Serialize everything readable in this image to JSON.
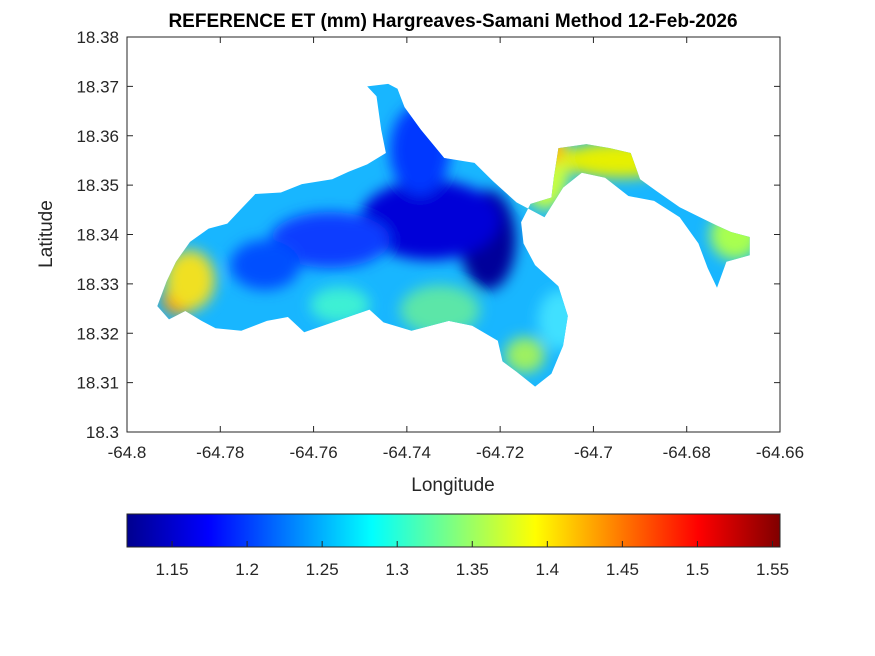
{
  "chart_data": {
    "type": "heatmap",
    "title": "REFERENCE ET (mm) Hargreaves-Samani Method  12-Feb-2026",
    "xlabel": "Longitude",
    "ylabel": "Latitude",
    "xlim": [
      -64.8,
      -64.66
    ],
    "ylim": [
      18.3,
      18.38
    ],
    "x_ticks": [
      "-64.8",
      "-64.78",
      "-64.76",
      "-64.74",
      "-64.72",
      "-64.7",
      "-64.68",
      "-64.66"
    ],
    "y_ticks": [
      "18.3",
      "18.31",
      "18.32",
      "18.33",
      "18.34",
      "18.35",
      "18.36",
      "18.37",
      "18.38"
    ],
    "colorbar": {
      "colormap": "jet",
      "range": [
        1.12,
        1.555
      ],
      "ticks": [
        "1.15",
        "1.2",
        "1.25",
        "1.3",
        "1.35",
        "1.4",
        "1.45",
        "1.5",
        "1.55"
      ]
    },
    "grid": false,
    "island_outline": [
      [
        -64.791,
        18.3228
      ],
      [
        -64.7875,
        18.3245
      ],
      [
        -64.784,
        18.3225
      ],
      [
        -64.781,
        18.321
      ],
      [
        -64.7755,
        18.3205
      ],
      [
        -64.77,
        18.3225
      ],
      [
        -64.7655,
        18.3233
      ],
      [
        -64.762,
        18.3202
      ],
      [
        -64.758,
        18.3215
      ],
      [
        -64.752,
        18.3235
      ],
      [
        -64.748,
        18.3248
      ],
      [
        -64.745,
        18.3222
      ],
      [
        -64.739,
        18.3205
      ],
      [
        -64.731,
        18.3225
      ],
      [
        -64.726,
        18.3215
      ],
      [
        -64.7205,
        18.3185
      ],
      [
        -64.7195,
        18.3143
      ],
      [
        -64.7165,
        18.3122
      ],
      [
        -64.7125,
        18.3092
      ],
      [
        -64.709,
        18.3118
      ],
      [
        -64.7065,
        18.3175
      ],
      [
        -64.7055,
        18.3235
      ],
      [
        -64.7075,
        18.3295
      ],
      [
        -64.7125,
        18.3338
      ],
      [
        -64.715,
        18.3382
      ],
      [
        -64.7155,
        18.3425
      ],
      [
        -64.7135,
        18.3462
      ],
      [
        -64.709,
        18.3475
      ],
      [
        -64.7085,
        18.3515
      ],
      [
        -64.7075,
        18.3575
      ],
      [
        -64.7015,
        18.3583
      ],
      [
        -64.6965,
        18.3575
      ],
      [
        -64.692,
        18.3565
      ],
      [
        -64.69,
        18.3512
      ],
      [
        -64.6865,
        18.3488
      ],
      [
        -64.6815,
        18.3455
      ],
      [
        -64.6765,
        18.3432
      ],
      [
        -64.6735,
        18.3418
      ],
      [
        -64.6705,
        18.3405
      ],
      [
        -64.6665,
        18.3395
      ],
      [
        -64.6665,
        18.3358
      ],
      [
        -64.6715,
        18.3345
      ],
      [
        -64.6735,
        18.3292
      ],
      [
        -64.6755,
        18.3332
      ],
      [
        -64.6775,
        18.3382
      ],
      [
        -64.6815,
        18.3435
      ],
      [
        -64.687,
        18.3468
      ],
      [
        -64.6925,
        18.3478
      ],
      [
        -64.6975,
        18.3515
      ],
      [
        -64.7025,
        18.3525
      ],
      [
        -64.7065,
        18.3495
      ],
      [
        -64.7105,
        18.3435
      ],
      [
        -64.7165,
        18.3465
      ],
      [
        -64.7215,
        18.3508
      ],
      [
        -64.7255,
        18.3545
      ],
      [
        -64.732,
        18.3555
      ],
      [
        -64.737,
        18.3612
      ],
      [
        -64.7405,
        18.3658
      ],
      [
        -64.742,
        18.3695
      ],
      [
        -64.744,
        18.3705
      ],
      [
        -64.7485,
        18.37
      ],
      [
        -64.7465,
        18.368
      ],
      [
        -64.7455,
        18.3612
      ],
      [
        -64.7445,
        18.3565
      ],
      [
        -64.7485,
        18.3542
      ],
      [
        -64.7525,
        18.3527
      ],
      [
        -64.756,
        18.3512
      ],
      [
        -64.7625,
        18.3502
      ],
      [
        -64.767,
        18.3485
      ],
      [
        -64.7725,
        18.3482
      ],
      [
        -64.7755,
        18.3452
      ],
      [
        -64.7785,
        18.3422
      ],
      [
        -64.7825,
        18.3412
      ],
      [
        -64.7865,
        18.3385
      ],
      [
        -64.7895,
        18.3345
      ],
      [
        -64.7915,
        18.3305
      ],
      [
        -64.7935,
        18.3255
      ]
    ]
  }
}
